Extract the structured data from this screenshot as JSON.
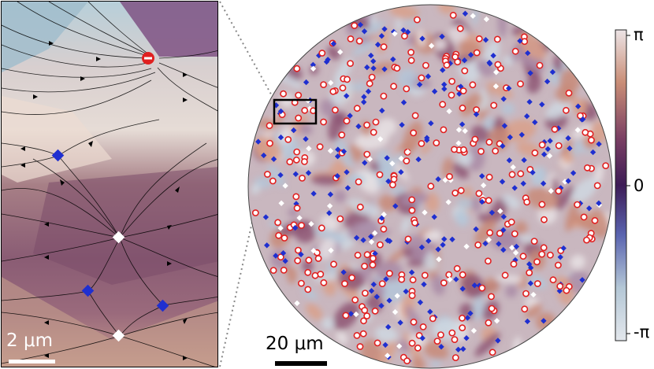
{
  "zoom_panel": {
    "scalebar_label": "2 μm"
  },
  "main_panel": {
    "scalebar_label": "20 μm"
  },
  "colorbar": {
    "tick_labels": [
      "π",
      "0",
      "-π"
    ],
    "colors": [
      "#ece4e6",
      "#c98d76",
      "#7a3f63",
      "#3d1c56",
      "#5a64b0",
      "#b4c7d6",
      "#e3e7ec"
    ]
  },
  "markers": {
    "positive_color": "#e02020",
    "negative_color": "#1f2fd0",
    "neutral_color": "#ffffff"
  }
}
